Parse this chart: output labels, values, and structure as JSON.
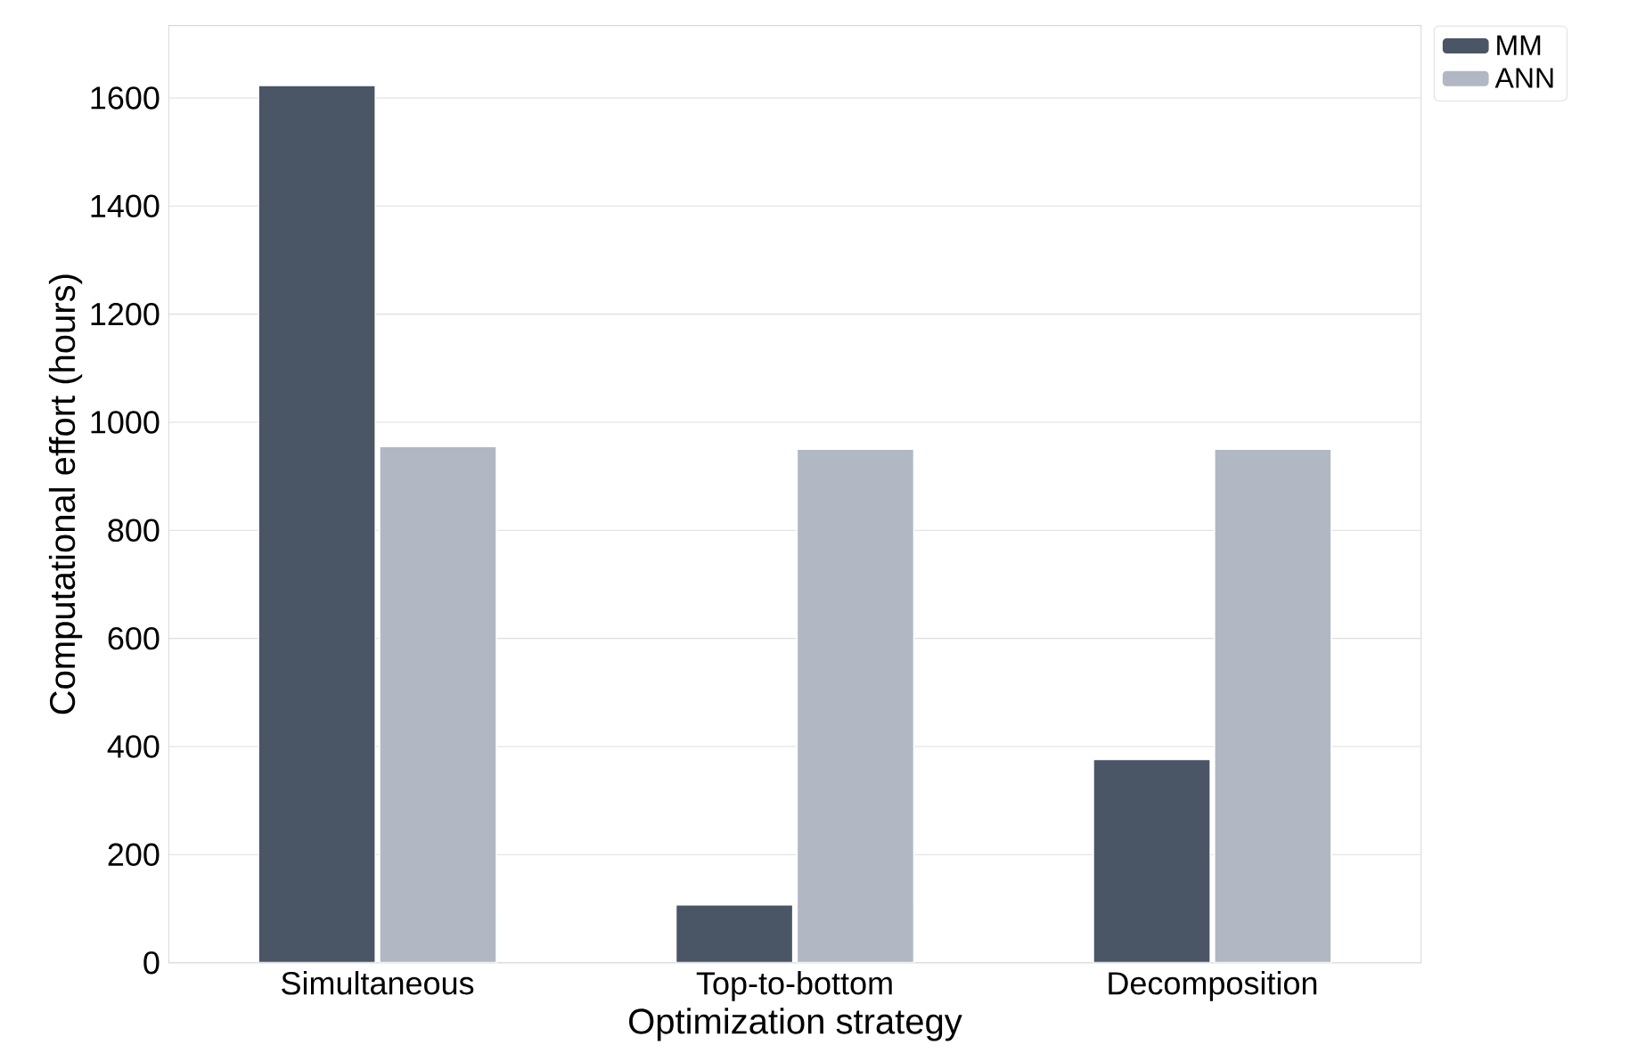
{
  "chart_data": {
    "type": "bar",
    "xlabel": "Optimization strategy",
    "ylabel": "Computational effort (hours)",
    "categories": [
      "Simultaneous",
      "Top-to-bottom",
      "Decomposition"
    ],
    "series": [
      {
        "name": "MM",
        "color": "#4a5566",
        "values": [
          1623,
          107,
          376
        ]
      },
      {
        "name": "ANN",
        "color": "#b1b8c4",
        "values": [
          955,
          950,
          950
        ]
      }
    ],
    "ylim": [
      0,
      1734
    ],
    "yticks": [
      0,
      200,
      400,
      600,
      800,
      1000,
      1200,
      1400,
      1600
    ],
    "grid": "y",
    "legend": "top right"
  }
}
